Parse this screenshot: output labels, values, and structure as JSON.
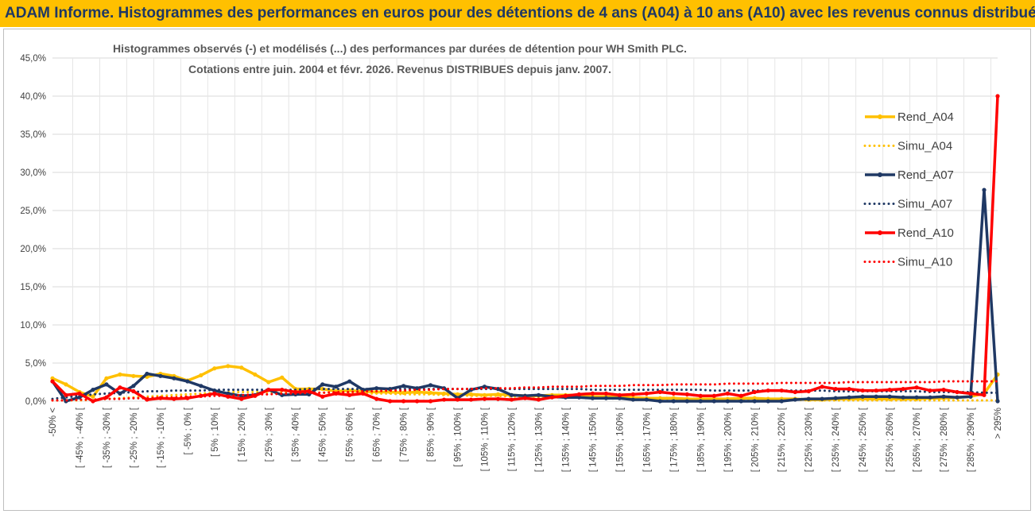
{
  "window": {
    "banner": "ADAM Informe. Histogrammes des performances en euros pour des détentions de 4 ans (A04) à 10 ans (A10) avec les revenus connus distribués"
  },
  "chart_data": {
    "type": "line",
    "title": "Histogrammes observés (-) et modélisés (...) des performances par durées de détention pour WH Smith PLC.",
    "subtitle": "Cotations entre juin. 2004 et févr. 2026. Revenus DISTRIBUES depuis janv. 2007.",
    "xlabel": "",
    "ylabel": "",
    "ylim": [
      0,
      45
    ],
    "yticks": [
      "0,0%",
      "5,0%",
      "10,0%",
      "15,0%",
      "20,0%",
      "25,0%",
      "30,0%",
      "35,0%",
      "40,0%",
      "45,0%"
    ],
    "grid": true,
    "legend_position": "right",
    "categories": [
      "-50% <",
      "[ -50% ; -45% [",
      "[ -45% ; -40% [",
      "[ -40% ; -35% [",
      "[ -35% ; -30% [",
      "[ -30% ; -25% [",
      "[ -25% ; -20% [",
      "[ -20% ; -15% [",
      "[ -15% ; -10% [",
      "[ -10% ; -5% [",
      "[ -5% ; 0% [",
      "[ 0% ; 5% [",
      "[ 5% ; 10% [",
      "[ 10% ; 15% [",
      "[ 15% ; 20% [",
      "[ 20% ; 25% [",
      "[ 25% ; 30% [",
      "[ 30% ; 35% [",
      "[ 35% ; 40% [",
      "[ 40% ; 45% [",
      "[ 45% ; 50% [",
      "[ 50% ; 55% [",
      "[ 55% ; 60% [",
      "[ 60% ; 65% [",
      "[ 65% ; 70% [",
      "[ 70% ; 75% [",
      "[ 75% ; 80% [",
      "[ 80% ; 85% [",
      "[ 85% ; 90% [",
      "[ 90% ; 95% [",
      "[ 95% ; 100% [",
      "[ 100% ; 105% [",
      "[ 105% ; 110% [",
      "[ 110% ; 115% [",
      "[ 115% ; 120% [",
      "[ 120% ; 125% [",
      "[ 125% ; 130% [",
      "[ 130% ; 135% [",
      "[ 135% ; 140% [",
      "[ 140% ; 145% [",
      "[ 145% ; 150% [",
      "[ 150% ; 155% [",
      "[ 155% ; 160% [",
      "[ 160% ; 165% [",
      "[ 165% ; 170% [",
      "[ 170% ; 175% [",
      "[ 175% ; 180% [",
      "[ 180% ; 185% [",
      "[ 185% ; 190% [",
      "[ 190% ; 195% [",
      "[ 195% ; 200% [",
      "[ 200% ; 205% [",
      "[ 205% ; 210% [",
      "[ 210% ; 215% [",
      "[ 215% ; 220% [",
      "[ 220% ; 225% [",
      "[ 225% ; 230% [",
      "[ 230% ; 235% [",
      "[ 235% ; 240% [",
      "[ 240% ; 245% [",
      "[ 245% ; 250% [",
      "[ 250% ; 255% [",
      "[ 255% ; 260% [",
      "[ 260% ; 265% [",
      "[ 265% ; 270% [",
      "[ 270% ; 275% [",
      "[ 275% ; 280% [",
      "[ 280% ; 285% [",
      "[ 285% ; 290% [",
      "[ 290% ; 295% [",
      "> 295%"
    ],
    "series": [
      {
        "name": "Rend_A04",
        "style": "solid",
        "marker": true,
        "color": "#ffc000",
        "values": [
          3.0,
          2.2,
          1.2,
          0.6,
          3.0,
          3.5,
          3.3,
          3.2,
          3.6,
          3.3,
          2.7,
          3.4,
          4.3,
          4.6,
          4.4,
          3.5,
          2.5,
          3.1,
          1.6,
          1.6,
          1.6,
          1.3,
          1.4,
          1.3,
          1.2,
          1.2,
          1.1,
          1.2,
          1.1,
          1.0,
          0.9,
          0.9,
          0.8,
          0.9,
          0.8,
          0.7,
          0.7,
          0.8,
          0.8,
          0.8,
          0.6,
          0.6,
          0.5,
          0.5,
          0.4,
          0.4,
          0.4,
          0.3,
          0.3,
          0.3,
          0.3,
          0.4,
          0.4,
          0.3,
          0.3,
          0.3,
          0.2,
          0.2,
          0.3,
          0.3,
          0.3,
          0.3,
          0.3,
          0.3,
          0.3,
          0.4,
          0.4,
          0.5,
          0.6,
          1.0,
          3.5
        ]
      },
      {
        "name": "Simu_A04",
        "style": "dotted",
        "marker": false,
        "color": "#ffc000",
        "values": [
          0.1,
          0.1,
          0.1,
          0.2,
          0.3,
          0.4,
          0.5,
          0.6,
          0.7,
          0.8,
          0.9,
          1.0,
          1.1,
          1.2,
          1.2,
          1.2,
          1.2,
          1.2,
          1.2,
          1.2,
          1.1,
          1.1,
          1.1,
          1.0,
          1.0,
          1.0,
          0.9,
          0.9,
          0.9,
          0.8,
          0.8,
          0.7,
          0.7,
          0.7,
          0.6,
          0.6,
          0.6,
          0.5,
          0.5,
          0.5,
          0.4,
          0.4,
          0.4,
          0.4,
          0.3,
          0.3,
          0.3,
          0.3,
          0.3,
          0.2,
          0.2,
          0.2,
          0.2,
          0.2,
          0.2,
          0.2,
          0.1,
          0.1,
          0.1,
          0.1,
          0.1,
          0.1,
          0.1,
          0.1,
          0.1,
          0.1,
          0.1,
          0.1,
          0.1,
          0.1,
          0.1
        ]
      },
      {
        "name": "Rend_A07",
        "style": "solid",
        "marker": true,
        "color": "#1f3864",
        "values": [
          2.6,
          0.0,
          0.5,
          1.5,
          2.2,
          1.0,
          2.0,
          3.6,
          3.3,
          3.0,
          2.6,
          2.0,
          1.4,
          1.0,
          0.7,
          0.8,
          1.5,
          0.8,
          0.9,
          0.9,
          2.2,
          1.9,
          2.6,
          1.5,
          1.7,
          1.6,
          2.0,
          1.7,
          2.1,
          1.7,
          0.4,
          1.5,
          1.9,
          1.6,
          0.8,
          0.7,
          0.8,
          0.6,
          0.5,
          0.5,
          0.4,
          0.4,
          0.4,
          0.2,
          0.2,
          0.0,
          0.0,
          0.0,
          0.0,
          0.0,
          0.0,
          0.0,
          0.0,
          0.0,
          0.0,
          0.2,
          0.3,
          0.3,
          0.4,
          0.5,
          0.6,
          0.6,
          0.6,
          0.5,
          0.5,
          0.5,
          0.6,
          0.5,
          0.6,
          27.7,
          0.0
        ]
      },
      {
        "name": "Simu_A07",
        "style": "dotted",
        "marker": false,
        "color": "#1f3864",
        "values": [
          0.3,
          0.5,
          0.7,
          0.9,
          1.0,
          1.1,
          1.2,
          1.3,
          1.3,
          1.4,
          1.4,
          1.4,
          1.5,
          1.5,
          1.5,
          1.5,
          1.5,
          1.5,
          1.5,
          1.6,
          1.6,
          1.6,
          1.6,
          1.6,
          1.6,
          1.6,
          1.6,
          1.6,
          1.6,
          1.6,
          1.6,
          1.6,
          1.6,
          1.6,
          1.6,
          1.6,
          1.6,
          1.6,
          1.6,
          1.6,
          1.5,
          1.5,
          1.5,
          1.5,
          1.5,
          1.5,
          1.5,
          1.5,
          1.5,
          1.4,
          1.4,
          1.4,
          1.4,
          1.4,
          1.4,
          1.4,
          1.4,
          1.4,
          1.3,
          1.3,
          1.3,
          1.3,
          1.3,
          1.3,
          1.3,
          1.2,
          1.2,
          1.2,
          1.2,
          1.1,
          1.1
        ]
      },
      {
        "name": "Rend_A10",
        "style": "solid",
        "marker": true,
        "color": "#ff0000",
        "values": [
          2.6,
          0.8,
          1.0,
          0.0,
          0.5,
          1.8,
          1.3,
          0.2,
          0.4,
          0.3,
          0.4,
          0.7,
          1.0,
          0.6,
          0.3,
          0.7,
          1.5,
          1.5,
          1.2,
          1.3,
          0.6,
          1.0,
          0.8,
          1.0,
          0.3,
          0.0,
          0.0,
          0.0,
          0.0,
          0.2,
          0.2,
          0.2,
          0.3,
          0.3,
          0.2,
          0.4,
          0.2,
          0.5,
          0.7,
          0.9,
          1.0,
          1.0,
          0.8,
          0.9,
          1.0,
          1.2,
          1.0,
          0.9,
          0.7,
          0.7,
          1.0,
          0.7,
          1.2,
          1.4,
          1.4,
          1.2,
          1.3,
          1.9,
          1.6,
          1.6,
          1.4,
          1.4,
          1.5,
          1.6,
          1.8,
          1.4,
          1.5,
          1.2,
          1.0,
          0.8,
          40.0
        ]
      },
      {
        "name": "Simu_A10",
        "style": "dotted",
        "marker": false,
        "color": "#ff0000",
        "values": [
          0.1,
          0.1,
          0.2,
          0.2,
          0.3,
          0.3,
          0.4,
          0.4,
          0.5,
          0.5,
          0.6,
          0.6,
          0.7,
          0.7,
          0.8,
          0.9,
          0.9,
          1.0,
          1.0,
          1.1,
          1.1,
          1.2,
          1.2,
          1.3,
          1.3,
          1.4,
          1.4,
          1.5,
          1.5,
          1.6,
          1.6,
          1.6,
          1.7,
          1.7,
          1.7,
          1.8,
          1.8,
          1.9,
          1.9,
          1.9,
          2.0,
          2.0,
          2.0,
          2.1,
          2.1,
          2.1,
          2.2,
          2.2,
          2.2,
          2.2,
          2.3,
          2.3,
          2.3,
          2.3,
          2.4,
          2.4,
          2.4,
          2.4,
          2.4,
          2.5,
          2.5,
          2.5,
          2.5,
          2.5,
          2.5,
          2.5,
          2.6,
          2.6,
          2.6,
          2.6,
          2.6
        ]
      }
    ]
  }
}
